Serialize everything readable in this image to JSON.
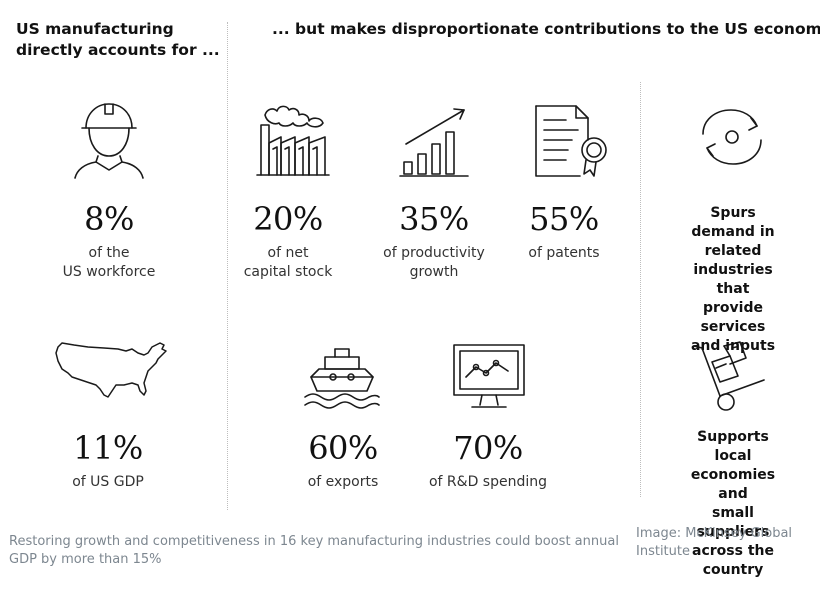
{
  "headings": {
    "left": "US manufacturing\ndirectly accounts for ...",
    "right": "... but makes disproportionate contributions to the US economy"
  },
  "stats": {
    "workforce": {
      "value": "8%",
      "label": "of the\nUS workforce",
      "icon": "worker-hardhat-icon"
    },
    "capital": {
      "value": "20%",
      "label": "of net\ncapital stock",
      "icon": "factory-icon"
    },
    "productivity": {
      "value": "35%",
      "label": "of productivity\ngrowth",
      "icon": "rising-bar-chart-icon"
    },
    "patents": {
      "value": "55%",
      "label": "of patents",
      "icon": "certificate-icon"
    },
    "gdp": {
      "value": "11%",
      "label": "of US GDP",
      "icon": "us-map-icon"
    },
    "exports": {
      "value": "60%",
      "label": "of exports",
      "icon": "cargo-ship-icon"
    },
    "rnd": {
      "value": "70%",
      "label": "of R&D spending",
      "icon": "monitor-line-chart-icon"
    }
  },
  "side": {
    "demand": {
      "text": "Spurs demand in\nrelated industries\nthat provide services\nand inputs",
      "icon": "cycle-arrows-icon"
    },
    "local": {
      "text": "Supports local\neconomies and\nsmall suppliers\nacross the country",
      "icon": "hand-truck-icon"
    }
  },
  "caption": "Restoring growth and competitiveness in 16 key manufacturing industries could boost annual GDP by more than 15%",
  "credit": "Image: McKinsey Global Institute",
  "colors": {
    "ink": "#111111",
    "caption": "#7d8790",
    "divider": "#bdbdbd"
  }
}
